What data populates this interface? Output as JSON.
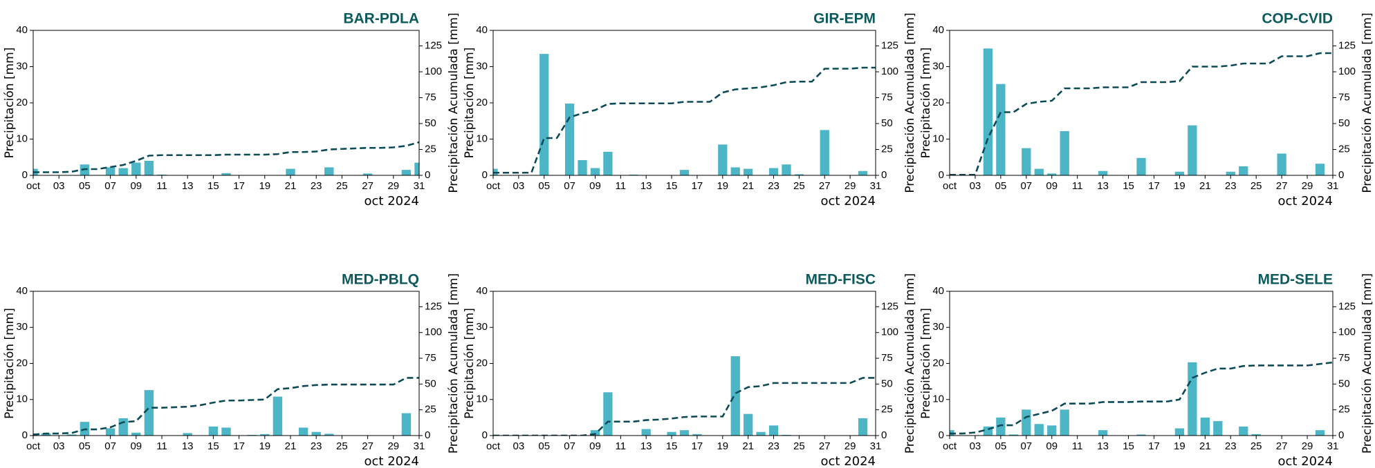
{
  "chart_data": [
    {
      "type": "bar",
      "title": "BAR-PDLA",
      "y_label": "Precipitación [mm]",
      "y2_label": "Precipitación Acumulada [mm]",
      "x_label": "oct 2024",
      "x": [
        1,
        2,
        3,
        4,
        5,
        6,
        7,
        8,
        9,
        10,
        11,
        12,
        13,
        14,
        15,
        16,
        17,
        18,
        19,
        20,
        21,
        22,
        23,
        24,
        25,
        26,
        27,
        28,
        29,
        30,
        31
      ],
      "xlim": [
        1,
        31
      ],
      "xticks": [
        {
          "value": 1,
          "label": "oct"
        },
        {
          "value": 3,
          "label": "03"
        },
        {
          "value": 5,
          "label": "05"
        },
        {
          "value": 7,
          "label": "07"
        },
        {
          "value": 9,
          "label": "09"
        },
        11,
        13,
        15,
        17,
        19,
        21,
        23,
        25,
        27,
        29,
        31
      ],
      "ylim": [
        0,
        40
      ],
      "yticks": [
        0,
        10,
        20,
        30,
        40
      ],
      "y2lim": [
        0,
        140
      ],
      "y2ticks": [
        0,
        25,
        50,
        75,
        100,
        125
      ],
      "series": [
        {
          "type": "bar",
          "color": "#4db6c6",
          "values": [
            1.8,
            0,
            0,
            0,
            3.0,
            0,
            2.2,
            2.0,
            3.5,
            4.0,
            0.2,
            0,
            0,
            0,
            0,
            0.6,
            0,
            0,
            0,
            0,
            1.8,
            0,
            0,
            2.2,
            0,
            0,
            0.5,
            0,
            0,
            1.5,
            3.5
          ]
        },
        {
          "type": "line",
          "style": "dashed",
          "axis": "y2",
          "color": "#0b4a57",
          "values": [
            3,
            3,
            3,
            3.5,
            6,
            6,
            8,
            10,
            14,
            19,
            19.5,
            19.5,
            19.5,
            19.5,
            19.5,
            20,
            20,
            20,
            20,
            20.5,
            22.5,
            22.5,
            23,
            25,
            25.5,
            26,
            26.5,
            26.5,
            27,
            28.5,
            32
          ]
        }
      ]
    },
    {
      "type": "bar",
      "title": "GIR-EPM",
      "y_label": "Precipitación [mm]",
      "y2_label": "Precipitación Acumulada [mm]",
      "x_label": "oct 2024",
      "x": [
        1,
        2,
        3,
        4,
        5,
        6,
        7,
        8,
        9,
        10,
        11,
        12,
        13,
        14,
        15,
        16,
        17,
        18,
        19,
        20,
        21,
        22,
        23,
        24,
        25,
        26,
        27,
        28,
        29,
        30,
        31
      ],
      "xlim": [
        1,
        31
      ],
      "xticks": [
        {
          "value": 1,
          "label": "oct"
        },
        {
          "value": 3,
          "label": "03"
        },
        {
          "value": 5,
          "label": "05"
        },
        {
          "value": 7,
          "label": "07"
        },
        {
          "value": 9,
          "label": "09"
        },
        11,
        13,
        15,
        17,
        19,
        21,
        23,
        25,
        27,
        29,
        31
      ],
      "ylim": [
        0,
        40
      ],
      "yticks": [
        0,
        10,
        20,
        30,
        40
      ],
      "y2lim": [
        0,
        140
      ],
      "y2ticks": [
        0,
        25,
        50,
        75,
        100,
        125
      ],
      "series": [
        {
          "type": "bar",
          "color": "#4db6c6",
          "values": [
            1.8,
            0,
            0,
            0,
            33.5,
            0,
            19.8,
            4.2,
            2.0,
            6.5,
            0,
            0.2,
            0,
            0,
            0,
            1.5,
            0,
            0,
            8.5,
            2.2,
            1.8,
            0,
            2.0,
            3.0,
            0.3,
            0,
            12.5,
            0,
            0,
            1.2,
            0
          ]
        },
        {
          "type": "line",
          "style": "dashed",
          "axis": "y2",
          "color": "#0b4a57",
          "values": [
            2.5,
            2.5,
            2.5,
            2.5,
            36,
            36,
            56,
            60,
            63,
            69,
            69.5,
            69.5,
            69.5,
            69.5,
            69.5,
            71,
            71,
            71,
            80,
            83,
            84,
            85,
            87,
            90,
            90.5,
            90.5,
            103,
            103,
            103,
            104,
            104
          ]
        }
      ]
    },
    {
      "type": "bar",
      "title": "COP-CVID",
      "y_label": "Precipitación [mm]",
      "y2_label": "Precipitación Acumulada [mm]",
      "x_label": "oct 2024",
      "x": [
        1,
        2,
        3,
        4,
        5,
        6,
        7,
        8,
        9,
        10,
        11,
        12,
        13,
        14,
        15,
        16,
        17,
        18,
        19,
        20,
        21,
        22,
        23,
        24,
        25,
        26,
        27,
        28,
        29,
        30,
        31
      ],
      "xlim": [
        1,
        31
      ],
      "xticks": [
        {
          "value": 1,
          "label": "oct"
        },
        {
          "value": 3,
          "label": "03"
        },
        {
          "value": 5,
          "label": "05"
        },
        {
          "value": 7,
          "label": "07"
        },
        {
          "value": 9,
          "label": "09"
        },
        11,
        13,
        15,
        17,
        19,
        21,
        23,
        25,
        27,
        29,
        31
      ],
      "ylim": [
        0,
        40
      ],
      "yticks": [
        0,
        10,
        20,
        30,
        40
      ],
      "y2lim": [
        0,
        140
      ],
      "y2ticks": [
        0,
        25,
        50,
        75,
        100,
        125
      ],
      "series": [
        {
          "type": "bar",
          "color": "#4db6c6",
          "values": [
            0.3,
            0,
            0,
            35,
            25.2,
            0,
            7.5,
            1.8,
            0.5,
            12.2,
            0,
            0,
            1.2,
            0,
            0,
            4.8,
            0,
            0,
            1.0,
            13.8,
            0,
            0,
            1.0,
            2.5,
            0,
            0,
            6.0,
            0,
            0,
            3.2,
            0
          ]
        },
        {
          "type": "line",
          "style": "dashed",
          "axis": "y2",
          "color": "#0b4a57",
          "values": [
            0.5,
            0.5,
            0.5,
            36,
            61,
            61,
            69,
            71,
            72,
            84,
            84,
            84,
            85,
            85,
            85,
            90,
            90,
            90,
            91,
            105,
            105,
            105,
            106,
            108,
            108,
            108,
            115,
            115,
            115,
            118,
            118
          ]
        }
      ]
    },
    {
      "type": "bar",
      "title": "MED-PBLQ",
      "y_label": "Precipitación [mm]",
      "y2_label": "Precipitación Acumulada [mm]",
      "x_label": "oct 2024",
      "x": [
        1,
        2,
        3,
        4,
        5,
        6,
        7,
        8,
        9,
        10,
        11,
        12,
        13,
        14,
        15,
        16,
        17,
        18,
        19,
        20,
        21,
        22,
        23,
        24,
        25,
        26,
        27,
        28,
        29,
        30,
        31
      ],
      "xlim": [
        1,
        31
      ],
      "xticks": [
        {
          "value": 1,
          "label": "oct"
        },
        {
          "value": 3,
          "label": "03"
        },
        {
          "value": 5,
          "label": "05"
        },
        {
          "value": 7,
          "label": "07"
        },
        {
          "value": 9,
          "label": "09"
        },
        11,
        13,
        15,
        17,
        19,
        21,
        23,
        25,
        27,
        29,
        31
      ],
      "ylim": [
        0,
        40
      ],
      "yticks": [
        0,
        10,
        20,
        30,
        40
      ],
      "y2lim": [
        0,
        140
      ],
      "y2ticks": [
        0,
        25,
        50,
        75,
        100,
        125
      ],
      "series": [
        {
          "type": "bar",
          "color": "#4db6c6",
          "values": [
            0.5,
            0.6,
            0,
            0.3,
            3.8,
            0,
            2.0,
            4.8,
            0.8,
            12.6,
            0,
            0,
            0.7,
            0,
            2.5,
            2.2,
            0,
            0.2,
            0.4,
            10.8,
            0,
            2.2,
            1.0,
            0.5,
            0,
            0,
            0.1,
            0,
            0,
            6.2,
            0
          ]
        },
        {
          "type": "line",
          "style": "dashed",
          "axis": "y2",
          "color": "#0b4a57",
          "values": [
            1,
            2,
            2,
            2.5,
            6,
            6,
            8,
            13,
            14,
            27,
            27,
            27.5,
            28,
            29.5,
            32,
            34,
            34,
            34.5,
            35,
            45,
            46,
            48,
            49,
            49.5,
            49.5,
            49.5,
            49.5,
            49.5,
            49.5,
            56,
            56
          ]
        }
      ]
    },
    {
      "type": "bar",
      "title": "MED-FISC",
      "y_label": "Precipitación [mm]",
      "y2_label": "Precipitación Acumulada [mm]",
      "x_label": "oct 2024",
      "x": [
        1,
        2,
        3,
        4,
        5,
        6,
        7,
        8,
        9,
        10,
        11,
        12,
        13,
        14,
        15,
        16,
        17,
        18,
        19,
        20,
        21,
        22,
        23,
        24,
        25,
        26,
        27,
        28,
        29,
        30,
        31
      ],
      "xlim": [
        1,
        31
      ],
      "xticks": [
        {
          "value": 1,
          "label": "oct"
        },
        {
          "value": 3,
          "label": "03"
        },
        {
          "value": 5,
          "label": "05"
        },
        {
          "value": 7,
          "label": "07"
        },
        {
          "value": 9,
          "label": "09"
        },
        11,
        13,
        15,
        17,
        19,
        21,
        23,
        25,
        27,
        29,
        31
      ],
      "ylim": [
        0,
        40
      ],
      "yticks": [
        0,
        10,
        20,
        30,
        40
      ],
      "y2lim": [
        0,
        140
      ],
      "y2ticks": [
        0,
        25,
        50,
        75,
        100,
        125
      ],
      "series": [
        {
          "type": "bar",
          "color": "#4db6c6",
          "values": [
            0,
            0,
            0,
            0,
            0,
            0,
            0,
            0,
            1.5,
            12.0,
            0,
            0,
            1.8,
            0,
            1.0,
            1.5,
            0.4,
            0,
            0,
            22.0,
            6.0,
            1.0,
            2.8,
            0.2,
            0,
            0,
            0,
            0,
            0,
            4.8,
            0
          ]
        },
        {
          "type": "line",
          "style": "dashed",
          "axis": "y2",
          "color": "#0b4a57",
          "values": [
            0,
            0,
            0,
            0,
            0,
            0,
            0,
            0,
            1.5,
            13.5,
            13.5,
            13.5,
            15,
            15.5,
            16.5,
            18,
            18.5,
            18.5,
            18.5,
            41,
            47,
            48,
            51,
            51,
            51,
            51,
            51,
            51,
            51,
            56,
            56
          ]
        }
      ]
    },
    {
      "type": "bar",
      "title": "MED-SELE",
      "y_label": "Precipitación [mm]",
      "y2_label": "Precipitación Acumulada [mm]",
      "x_label": "oct 2024",
      "x": [
        1,
        2,
        3,
        4,
        5,
        6,
        7,
        8,
        9,
        10,
        11,
        12,
        13,
        14,
        15,
        16,
        17,
        18,
        19,
        20,
        21,
        22,
        23,
        24,
        25,
        26,
        27,
        28,
        29,
        30,
        31
      ],
      "xlim": [
        1,
        31
      ],
      "xticks": [
        {
          "value": 1,
          "label": "oct"
        },
        {
          "value": 3,
          "label": "03"
        },
        {
          "value": 5,
          "label": "05"
        },
        {
          "value": 7,
          "label": "07"
        },
        {
          "value": 9,
          "label": "09"
        },
        11,
        13,
        15,
        17,
        19,
        21,
        23,
        25,
        27,
        29,
        31
      ],
      "ylim": [
        0,
        40
      ],
      "yticks": [
        0,
        10,
        20,
        30,
        40
      ],
      "y2lim": [
        0,
        140
      ],
      "y2ticks": [
        0,
        25,
        50,
        75,
        100,
        125
      ],
      "series": [
        {
          "type": "bar",
          "color": "#4db6c6",
          "values": [
            1.5,
            0,
            0,
            2.5,
            5.0,
            0.3,
            7.2,
            3.2,
            2.8,
            7.2,
            0,
            0,
            1.5,
            0,
            0,
            0.3,
            0,
            0,
            2.0,
            20.3,
            5.0,
            4.0,
            0,
            2.5,
            0.4,
            0,
            0,
            0,
            0,
            1.5,
            0
          ]
        },
        {
          "type": "line",
          "style": "dashed",
          "axis": "y2",
          "color": "#0b4a57",
          "values": [
            2,
            2,
            3,
            6,
            10,
            10,
            18,
            21,
            24,
            31,
            31,
            31,
            32.5,
            32.5,
            32.5,
            33,
            33,
            33,
            35,
            56,
            61,
            65,
            65,
            67.5,
            68,
            68,
            68,
            68,
            68,
            69.5,
            71
          ]
        }
      ]
    }
  ]
}
